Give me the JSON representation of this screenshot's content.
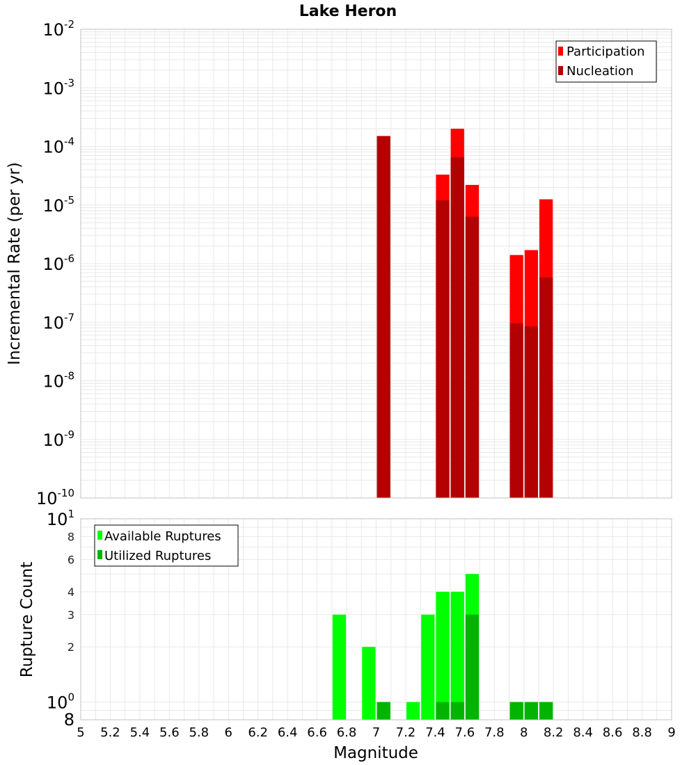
{
  "title": "Lake Heron",
  "colors": {
    "participation": "#ff0000",
    "nucleation": "#b30000",
    "available": "#00ff00",
    "utilized": "#00b400",
    "grid": "#e8e8e8",
    "frame": "#c0c0c0"
  },
  "chart_data": [
    {
      "type": "bar",
      "panel": "top",
      "title": "Lake Heron",
      "ylabel": "Incremental Rate (per yr)",
      "xlabel": "",
      "yscale": "log",
      "xlim": [
        5,
        9
      ],
      "ylim": [
        1e-10,
        0.01
      ],
      "ytick_exponents": [
        -10,
        -9,
        -8,
        -7,
        -6,
        -5,
        -4,
        -3,
        -2
      ],
      "ytick_base": "10",
      "bar_width": 0.1,
      "grid": true,
      "legend": {
        "placement": "top-right",
        "entries": [
          "Participation",
          "Nucleation"
        ]
      },
      "series": [
        {
          "name": "Participation",
          "x": [
            7.05,
            7.45,
            7.55,
            7.65,
            7.95,
            8.05,
            8.15
          ],
          "values": [
            0.00015,
            3.3e-05,
            0.0002,
            2.2e-05,
            1.4e-06,
            1.7e-06,
            1.25e-05
          ]
        },
        {
          "name": "Nucleation",
          "x": [
            7.05,
            7.45,
            7.55,
            7.65,
            7.95,
            8.05,
            8.15
          ],
          "values": [
            0.00015,
            1.2e-05,
            6.5e-05,
            6.3e-06,
            9.5e-08,
            8.5e-08,
            5.8e-07
          ]
        }
      ]
    },
    {
      "type": "bar",
      "panel": "bottom",
      "ylabel": "Rupture Count",
      "xlabel": "Magnitude",
      "yscale": "log",
      "xlim": [
        5,
        9
      ],
      "ylim": [
        0.8,
        10
      ],
      "x_ticks": [
        "5",
        "5.2",
        "5.4",
        "5.6",
        "5.8",
        "6",
        "6.2",
        "6.4",
        "6.6",
        "6.8",
        "7",
        "7.2",
        "7.4",
        "7.6",
        "7.8",
        "8",
        "8.2",
        "8.4",
        "8.6",
        "8.8",
        "9"
      ],
      "y_minor_ticks": [
        "2",
        "3",
        "4",
        "6",
        "8"
      ],
      "y_major_labels": {
        "base": "10",
        "lower_exp": "0",
        "upper_exp": "1",
        "bottom_label": "8"
      },
      "bar_width": 0.1,
      "grid": true,
      "legend": {
        "placement": "top-left",
        "entries": [
          "Available Ruptures",
          "Utilized Ruptures"
        ]
      },
      "series": [
        {
          "name": "Available Ruptures",
          "x": [
            6.75,
            6.95,
            7.05,
            7.25,
            7.35,
            7.45,
            7.55,
            7.65,
            7.95,
            8.05,
            8.15
          ],
          "values": [
            3,
            2,
            1,
            1,
            3,
            4,
            4,
            5,
            1,
            1,
            1
          ]
        },
        {
          "name": "Utilized Ruptures",
          "x": [
            7.05,
            7.45,
            7.55,
            7.65,
            7.95,
            8.05,
            8.15
          ],
          "values": [
            1,
            1,
            1,
            3,
            1,
            1,
            1
          ]
        }
      ]
    }
  ]
}
